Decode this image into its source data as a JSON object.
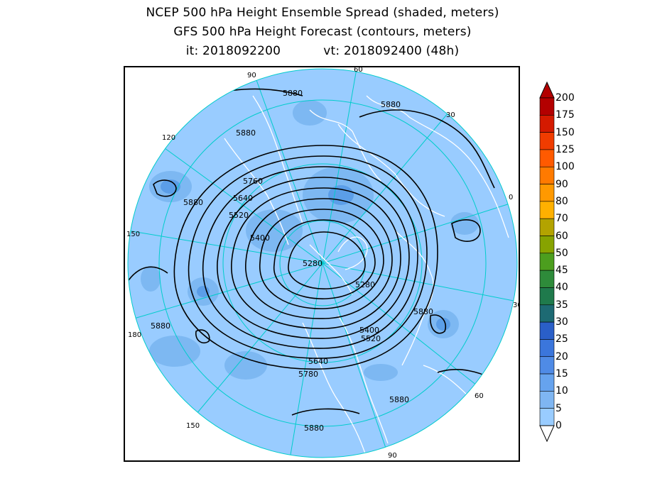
{
  "header": {
    "line1": "NCEP 500 hPa Height Ensemble Spread (shaded, meters)",
    "line2": "GFS 500 hPa Height Forecast (contours, meters)",
    "init_label": "it: 2018092200",
    "valid_label": "vt: 2018092400 (48h)"
  },
  "map": {
    "projection": "north-polar-stereographic",
    "longitude_labels": [
      "60",
      "30",
      "0",
      "30",
      "60",
      "90",
      "120",
      "150",
      "180",
      "150",
      "120",
      "90"
    ],
    "contour_labels": [
      "5880",
      "5880",
      "5880",
      "5880",
      "5760",
      "5640",
      "5520",
      "5400",
      "5280",
      "5280",
      "5880",
      "5400",
      "5520",
      "5640",
      "5780",
      "5880",
      "5880",
      "5880"
    ],
    "colors": {
      "ocean_base": "#99ccff",
      "spread_light": "#7db8f2",
      "spread_mid": "#5b9ee8",
      "land_lines": "#ffffff",
      "meridians": "#00cccc",
      "contours": "#000000"
    }
  },
  "colorbar": {
    "labels": [
      "200",
      "175",
      "150",
      "125",
      "100",
      "90",
      "80",
      "70",
      "60",
      "50",
      "45",
      "40",
      "35",
      "30",
      "25",
      "20",
      "15",
      "10",
      "5",
      "0"
    ],
    "colors": [
      "#b30000",
      "#d41a00",
      "#f03c00",
      "#ff5a00",
      "#ff7a00",
      "#ff9900",
      "#ffb000",
      "#b3a300",
      "#87a300",
      "#4c9e1e",
      "#2e8b3a",
      "#1f7a4c",
      "#1d6a73",
      "#2a5fc8",
      "#3b76dc",
      "#4f8be6",
      "#66a3ee",
      "#7fb6f2",
      "#99ccff"
    ]
  }
}
